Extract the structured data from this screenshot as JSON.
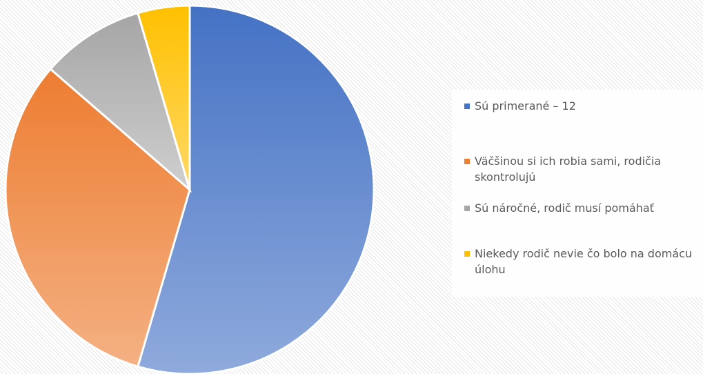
{
  "chart_data": {
    "type": "pie",
    "categories": [
      "Sú primerané – 12",
      "Väčšinou si ich robia sami, rodičia skontrolujú",
      "Sú náročné, rodič musí pomáhať",
      "Niekedy rodič nevie čo bolo na domácu úlohu"
    ],
    "values": [
      12,
      7,
      2,
      1
    ],
    "colors": [
      [
        "#4472c4",
        "#8faadc"
      ],
      [
        "#ed7d31",
        "#f4b183"
      ],
      [
        "#a5a5a5",
        "#cfcfcf"
      ],
      [
        "#ffc000",
        "#ffd966"
      ]
    ],
    "legend": "right"
  }
}
